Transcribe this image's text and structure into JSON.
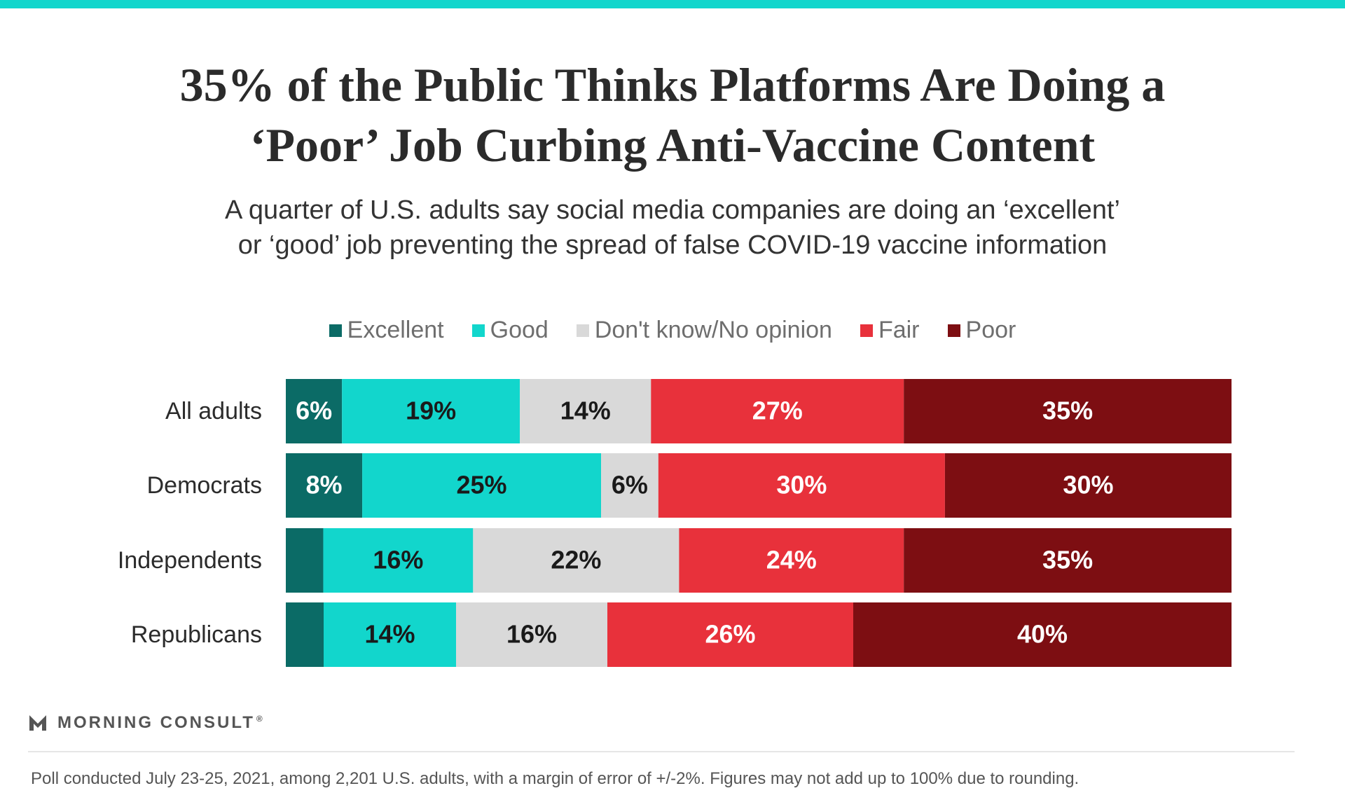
{
  "header": {
    "title_line1": "35% of the Public Thinks Platforms Are Doing a",
    "title_line2": "‘Poor’ Job Curbing Anti-Vaccine Content",
    "subtitle_line1": "A quarter of U.S. adults say social media companies are doing an ‘excellent’",
    "subtitle_line2": "or ‘good’ job preventing the spread of false COVID-19 vaccine information"
  },
  "legend": [
    {
      "label": "Excellent",
      "color": "#0b6b66"
    },
    {
      "label": "Good",
      "color": "#12d6cc"
    },
    {
      "label": "Don't know/No opinion",
      "color": "#d9d9d9"
    },
    {
      "label": "Fair",
      "color": "#e8313b"
    },
    {
      "label": "Poor",
      "color": "#7d0e12"
    }
  ],
  "chart_data": {
    "type": "bar",
    "orientation": "horizontal",
    "stacked": true,
    "categories": [
      "All adults",
      "Democrats",
      "Independents",
      "Republicans"
    ],
    "series": [
      {
        "name": "Excellent",
        "color": "#0b6b66",
        "values": [
          6,
          8,
          4,
          4
        ],
        "labels": [
          "6%",
          "8%",
          "",
          ""
        ]
      },
      {
        "name": "Good",
        "color": "#12d6cc",
        "values": [
          19,
          25,
          16,
          14
        ],
        "labels": [
          "19%",
          "25%",
          "16%",
          "14%"
        ]
      },
      {
        "name": "Don't know/No opinion",
        "color": "#d9d9d9",
        "values": [
          14,
          6,
          22,
          16
        ],
        "labels": [
          "14%",
          "6%",
          "22%",
          "16%"
        ]
      },
      {
        "name": "Fair",
        "color": "#e8313b",
        "values": [
          27,
          30,
          24,
          26
        ],
        "labels": [
          "27%",
          "30%",
          "24%",
          "26%"
        ]
      },
      {
        "name": "Poor",
        "color": "#7d0e12",
        "values": [
          35,
          30,
          35,
          40
        ],
        "labels": [
          "35%",
          "30%",
          "35%",
          "40%"
        ]
      }
    ],
    "label_colors": {
      "Excellent": "#ffffff",
      "Good": "#1a1a1a",
      "Don't know/No opinion": "#1a1a1a",
      "Fair": "#ffffff",
      "Poor": "#ffffff"
    },
    "legend_position": "top-center",
    "grid": false
  },
  "branding": {
    "logo_text": "MORNING CONSULT",
    "logo_mark": "®"
  },
  "footnote": "Poll conducted July 23-25, 2021, among 2,201 U.S. adults, with a margin of error of +/-2%. Figures may not add up to 100% due to rounding."
}
